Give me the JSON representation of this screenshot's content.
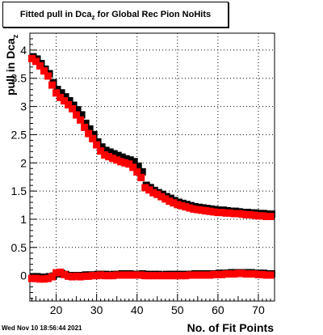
{
  "chart_data": {
    "type": "scatter",
    "title_main": "Fitted pull in Dca",
    "title_sub": "z",
    "title_rest": " for Global Rec Pion NoHits",
    "xlabel": "No. of Fit Points",
    "ylabel_main": "pull in Dca",
    "ylabel_sub": "z",
    "xlim": [
      13.5,
      74
    ],
    "ylim": [
      -0.45,
      4.3
    ],
    "xticks": [
      20,
      30,
      40,
      50,
      60,
      70
    ],
    "yticks": [
      0,
      0.5,
      1,
      1.5,
      2,
      2.5,
      3,
      3.5,
      4
    ],
    "grid": true,
    "x": [
      14,
      15,
      16,
      17,
      18,
      19,
      20,
      21,
      22,
      23,
      24,
      25,
      26,
      27,
      28,
      29,
      30,
      31,
      32,
      33,
      34,
      35,
      36,
      37,
      38,
      39,
      40,
      41,
      42,
      43,
      44,
      45,
      46,
      47,
      48,
      49,
      50,
      51,
      52,
      53,
      54,
      55,
      56,
      57,
      58,
      59,
      60,
      61,
      62,
      63,
      64,
      65,
      66,
      67,
      68,
      69,
      70,
      71,
      72,
      73
    ],
    "series": [
      {
        "color": "#000000",
        "values": [
          3.86,
          3.82,
          3.74,
          3.64,
          3.56,
          3.4,
          3.28,
          3.22,
          3.15,
          3.08,
          3.0,
          2.92,
          2.83,
          2.68,
          2.58,
          2.48,
          2.35,
          2.26,
          2.2,
          2.17,
          2.14,
          2.11,
          2.08,
          2.05,
          2.03,
          2.0,
          1.92,
          1.82,
          1.58,
          1.54,
          1.49,
          1.45,
          1.42,
          1.38,
          1.35,
          1.31,
          1.28,
          1.26,
          1.24,
          1.22,
          1.2,
          1.19,
          1.18,
          1.17,
          1.16,
          1.15,
          1.14,
          1.14,
          1.13,
          1.12,
          1.12,
          1.11,
          1.1,
          1.1,
          1.09,
          1.09,
          1.08,
          1.08,
          1.07,
          1.07
        ],
        "values2": [
          -0.04,
          -0.04,
          -0.05,
          -0.05,
          -0.04,
          -0.03,
          0.01,
          0.02,
          0.0,
          -0.02,
          -0.02,
          -0.02,
          -0.02,
          -0.01,
          -0.01,
          -0.01,
          0.0,
          0.0,
          0.0,
          -0.01,
          0.0,
          0.0,
          0.01,
          0.01,
          0.01,
          0.0,
          0.0,
          0.01,
          0.0,
          0.0,
          0.0,
          0.0,
          -0.01,
          0.0,
          0.0,
          0.0,
          0.0,
          0.0,
          0.0,
          0.0,
          0.01,
          0.01,
          0.01,
          0.01,
          0.01,
          0.01,
          0.02,
          0.02,
          0.02,
          0.03,
          0.03,
          0.03,
          0.03,
          0.03,
          0.03,
          0.02,
          0.02,
          0.02,
          0.01,
          0.01
        ]
      },
      {
        "color": "#ff0000",
        "values": [
          3.85,
          3.8,
          3.72,
          3.63,
          3.54,
          3.38,
          3.24,
          3.16,
          3.1,
          3.03,
          2.96,
          2.85,
          2.76,
          2.63,
          2.52,
          2.43,
          2.32,
          2.21,
          2.14,
          2.11,
          2.08,
          2.05,
          2.02,
          2.0,
          1.98,
          1.92,
          1.84,
          1.74,
          1.56,
          1.52,
          1.47,
          1.44,
          1.4,
          1.36,
          1.32,
          1.29,
          1.26,
          1.24,
          1.22,
          1.2,
          1.18,
          1.17,
          1.16,
          1.15,
          1.14,
          1.13,
          1.12,
          1.12,
          1.11,
          1.11,
          1.1,
          1.1,
          1.09,
          1.08,
          1.08,
          1.07,
          1.06,
          1.06,
          1.05,
          1.05
        ],
        "values2": [
          -0.05,
          -0.05,
          -0.06,
          -0.06,
          -0.05,
          -0.02,
          0.05,
          0.06,
          0.02,
          -0.01,
          -0.02,
          -0.01,
          -0.02,
          -0.01,
          -0.01,
          0.0,
          0.0,
          0.01,
          0.0,
          0.0,
          0.0,
          0.01,
          0.01,
          0.01,
          0.01,
          0.01,
          0.01,
          0.01,
          0.0,
          0.0,
          0.0,
          0.0,
          0.0,
          0.0,
          0.0,
          0.0,
          0.0,
          0.0,
          0.0,
          0.01,
          0.01,
          0.01,
          0.01,
          0.01,
          0.01,
          0.02,
          0.02,
          0.02,
          0.03,
          0.03,
          0.03,
          0.04,
          0.04,
          0.03,
          0.03,
          0.03,
          0.02,
          0.02,
          0.01,
          0.01
        ]
      }
    ]
  },
  "timestamp": "Wed Nov 10 18:56:44 2021"
}
